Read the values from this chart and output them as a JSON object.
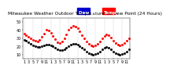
{
  "title": "Milwaukee Weather Outdoor Temperature vs Dew Point (24 Hours)",
  "outdoor_temp": [
    36,
    34,
    32,
    30,
    28,
    27,
    26,
    28,
    32,
    36,
    40,
    39,
    37,
    33,
    29,
    25,
    24,
    26,
    30,
    35,
    40,
    43,
    45,
    44,
    42,
    38,
    34,
    30,
    26,
    23,
    21,
    20,
    21,
    23,
    26,
    30,
    33,
    35,
    34,
    31,
    27,
    24,
    22,
    21,
    22,
    24,
    27,
    30
  ],
  "dew_point": [
    28,
    27,
    25,
    23,
    21,
    20,
    19,
    19,
    20,
    21,
    22,
    22,
    21,
    20,
    18,
    16,
    15,
    15,
    16,
    18,
    20,
    22,
    23,
    23,
    22,
    20,
    18,
    16,
    14,
    12,
    11,
    10,
    11,
    12,
    14,
    16,
    18,
    19,
    18,
    16,
    14,
    12,
    11,
    10,
    11,
    12,
    14,
    16
  ],
  "temp_color": "#ff0000",
  "dew_color": "#000000",
  "legend_temp_color": "#ff0000",
  "legend_dew_color": "#0000cc",
  "background_color": "#ffffff",
  "grid_color": "#aaaaaa",
  "ylim": [
    5,
    55
  ],
  "ytick_labels": [
    "10",
    "20",
    "30",
    "40",
    "50"
  ],
  "ytick_vals": [
    10,
    20,
    30,
    40,
    50
  ],
  "title_fontsize": 4.2,
  "tick_fontsize": 3.5,
  "legend_fontsize": 4.0,
  "marker_size": 1.0,
  "dpi": 100
}
